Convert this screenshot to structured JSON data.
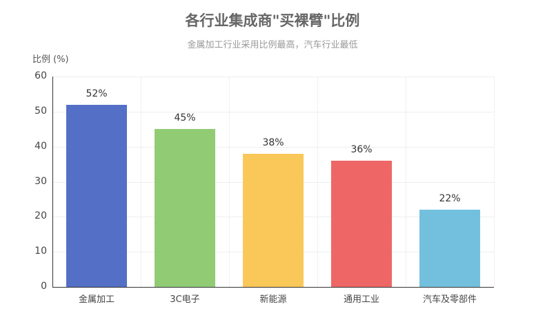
{
  "chart_data": {
    "type": "bar",
    "title": "各行业集成商\"买裸臂\"比例",
    "subtitle": "金属加工行业采用比例最高，汽车行业最低",
    "xlabel": "",
    "ylabel": "比例 (%)",
    "ylim": [
      0,
      60
    ],
    "yticks": [
      0,
      10,
      20,
      30,
      40,
      50,
      60
    ],
    "grid": true,
    "legend": null,
    "categories": [
      "金属加工",
      "3C电子",
      "新能源",
      "通用工业",
      "汽车及零部件"
    ],
    "values": [
      52,
      45,
      38,
      36,
      22
    ],
    "value_labels": [
      "52%",
      "45%",
      "38%",
      "36%",
      "22%"
    ],
    "colors": [
      "#5470c6",
      "#91cc75",
      "#fac858",
      "#ee6666",
      "#73c0de"
    ]
  }
}
